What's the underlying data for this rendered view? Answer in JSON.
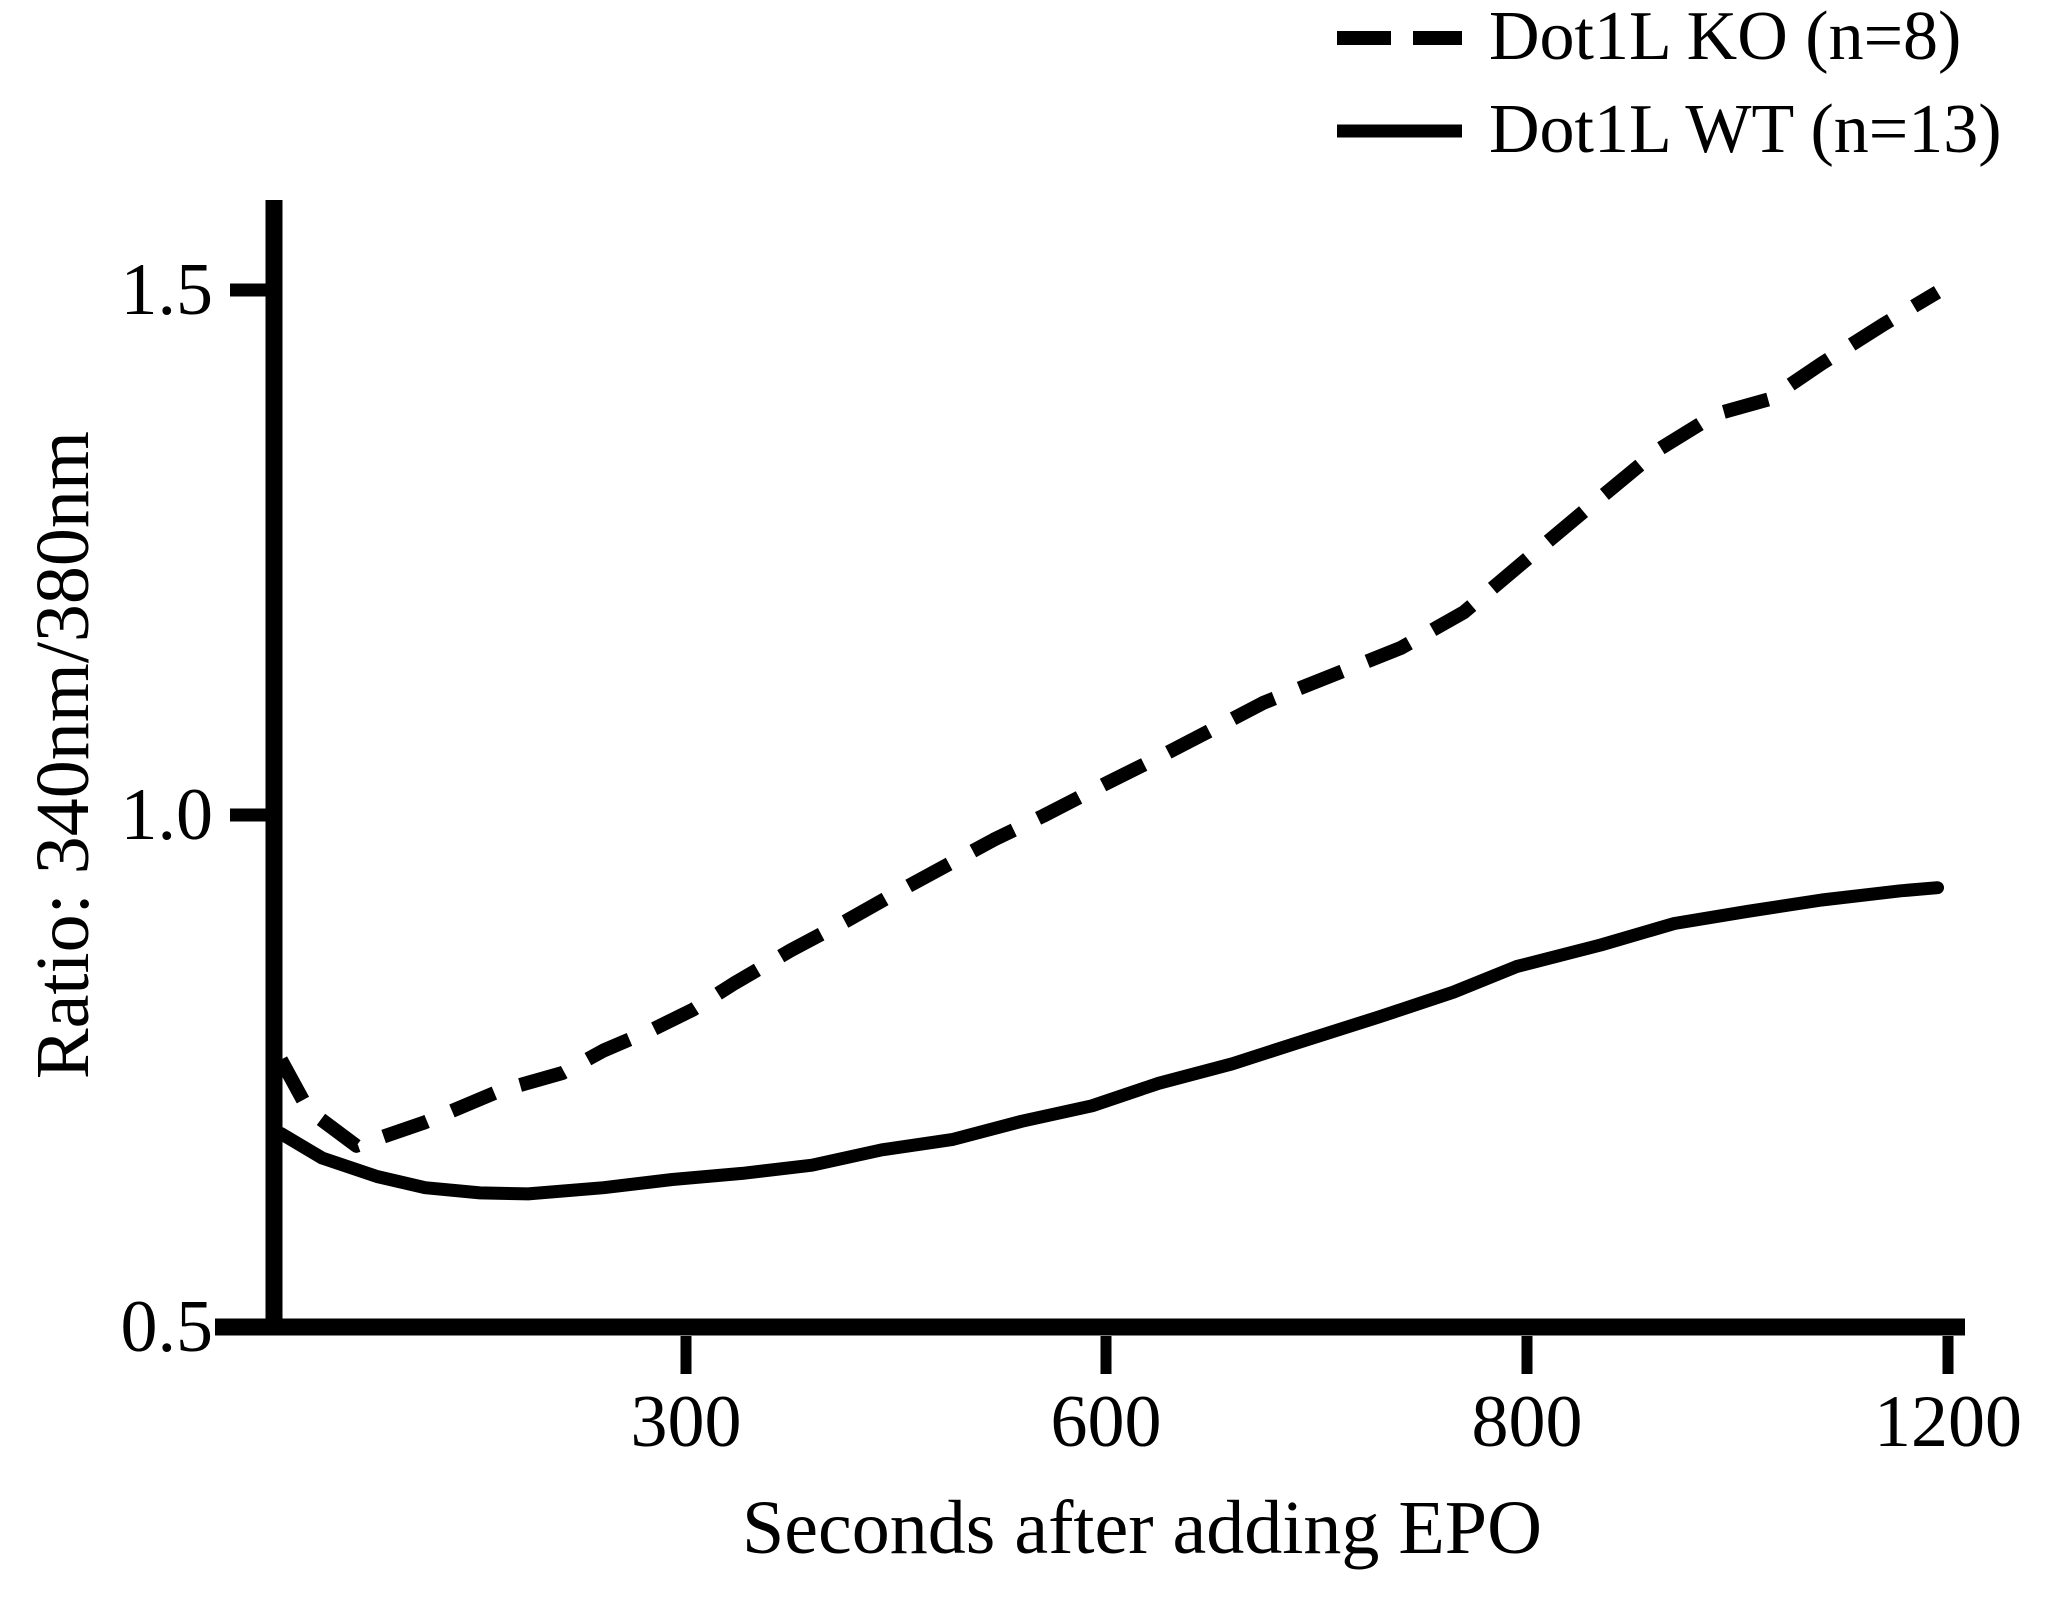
{
  "chart_data": {
    "type": "line",
    "title": "",
    "xlabel": "Seconds after adding EPO",
    "ylabel": "Ratio: 340nm/380nm",
    "x_tick_labels": [
      "300",
      "600",
      "800",
      "1200"
    ],
    "x_tick_seconds": [
      300,
      600,
      800,
      1200
    ],
    "y_tick_labels": [
      "0.5",
      "1.0",
      "1.5"
    ],
    "y_tick_values": [
      0.5,
      1.0,
      1.5
    ],
    "x_axis_range_seconds": [
      0,
      1200
    ],
    "y_axis_range": [
      0.5,
      1.55
    ],
    "grid": "off",
    "legend_position": "top-right",
    "background_color": "#ffffff",
    "line_color": "#000000",
    "series": [
      {
        "name": "Dot1L KO (n=8)",
        "style": "dashed",
        "points": [
          [
            5,
            0.761
          ],
          [
            25,
            0.712
          ],
          [
            60,
            0.677
          ],
          [
            110,
            0.7
          ],
          [
            165,
            0.731
          ],
          [
            210,
            0.748
          ],
          [
            240,
            0.77
          ],
          [
            275,
            0.79
          ],
          [
            305,
            0.81
          ],
          [
            335,
            0.836
          ],
          [
            375,
            0.868
          ],
          [
            415,
            0.897
          ],
          [
            450,
            0.924
          ],
          [
            485,
            0.95
          ],
          [
            520,
            0.976
          ],
          [
            555,
            0.999
          ],
          [
            600,
            1.03
          ],
          [
            625,
            1.055
          ],
          [
            650,
            1.081
          ],
          [
            675,
            1.107
          ],
          [
            715,
            1.139
          ],
          [
            740,
            1.159
          ],
          [
            770,
            1.193
          ],
          [
            805,
            1.248
          ],
          [
            855,
            1.29
          ],
          [
            925,
            1.348
          ],
          [
            980,
            1.382
          ],
          [
            1030,
            1.396
          ],
          [
            1080,
            1.43
          ],
          [
            1140,
            1.468
          ],
          [
            1190,
            1.498
          ]
        ]
      },
      {
        "name": "Dot1L WT (n=13)",
        "style": "solid",
        "points": [
          [
            5,
            0.689
          ],
          [
            35,
            0.665
          ],
          [
            75,
            0.647
          ],
          [
            110,
            0.636
          ],
          [
            150,
            0.631
          ],
          [
            185,
            0.63
          ],
          [
            240,
            0.636
          ],
          [
            290,
            0.644
          ],
          [
            340,
            0.65
          ],
          [
            390,
            0.658
          ],
          [
            440,
            0.673
          ],
          [
            490,
            0.683
          ],
          [
            540,
            0.701
          ],
          [
            590,
            0.716
          ],
          [
            625,
            0.738
          ],
          [
            660,
            0.757
          ],
          [
            690,
            0.777
          ],
          [
            730,
            0.803
          ],
          [
            765,
            0.827
          ],
          [
            795,
            0.852
          ],
          [
            870,
            0.873
          ],
          [
            940,
            0.894
          ],
          [
            1010,
            0.906
          ],
          [
            1080,
            0.917
          ],
          [
            1155,
            0.926
          ],
          [
            1190,
            0.929
          ]
        ]
      }
    ]
  }
}
